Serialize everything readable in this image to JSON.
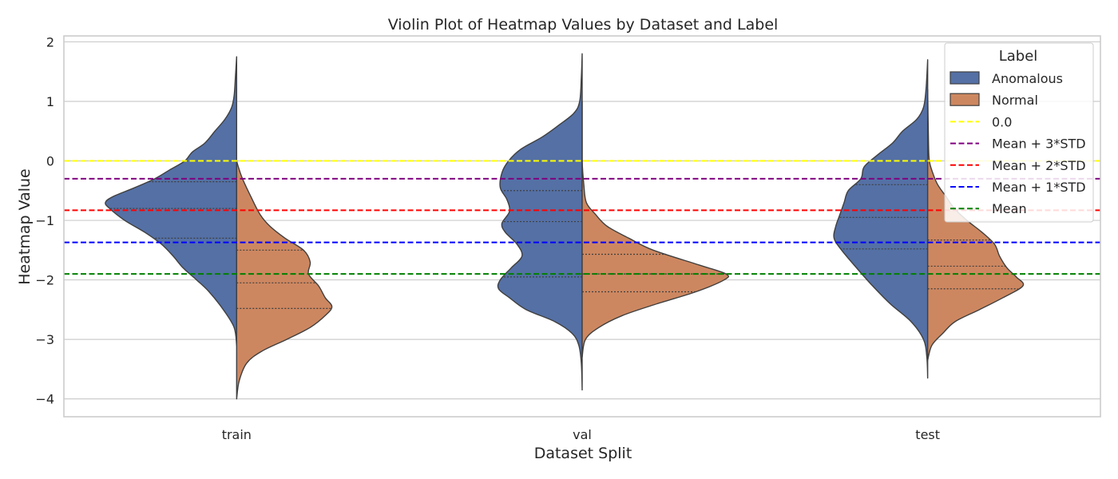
{
  "chart_data": {
    "type": "violin",
    "title": "Violin Plot of Heatmap Values by Dataset and Label",
    "xlabel": "Dataset Split",
    "ylabel": "Heatmap Value",
    "categories": [
      "train",
      "val",
      "test"
    ],
    "ylim": [
      -4.3,
      2.1
    ],
    "yticks": [
      2,
      1,
      0,
      -1,
      -2,
      -3,
      -4
    ],
    "ytick_labels": [
      "2",
      "1",
      "0",
      "−1",
      "−2",
      "−3",
      "−4"
    ],
    "grid": true,
    "legend": {
      "title": "Label",
      "placement": "top-right",
      "entries": [
        "Anomalous",
        "Normal",
        "0.0",
        "Mean + 3*STD",
        "Mean + 2*STD",
        "Mean + 1*STD",
        "Mean"
      ]
    },
    "series": [
      {
        "name": "Anomalous",
        "side": "left",
        "color": "#5470a5",
        "violins": [
          {
            "category": "train",
            "range": [
              -3.1,
              1.75
            ],
            "quartiles": [
              -1.3,
              -0.8,
              -0.35
            ],
            "profile": [
              [
                -3.1,
                0.0
              ],
              [
                -2.8,
                0.03
              ],
              [
                -2.5,
                0.16
              ],
              [
                -2.2,
                0.33
              ],
              [
                -2.0,
                0.48
              ],
              [
                -1.8,
                0.64
              ],
              [
                -1.6,
                0.76
              ],
              [
                -1.4,
                0.9
              ],
              [
                -1.2,
                1.1
              ],
              [
                -1.0,
                1.34
              ],
              [
                -0.8,
                1.52
              ],
              [
                -0.7,
                1.57
              ],
              [
                -0.6,
                1.48
              ],
              [
                -0.45,
                1.22
              ],
              [
                -0.3,
                0.98
              ],
              [
                -0.15,
                0.8
              ],
              [
                0.0,
                0.62
              ],
              [
                0.15,
                0.53
              ],
              [
                0.3,
                0.38
              ],
              [
                0.5,
                0.26
              ],
              [
                0.7,
                0.14
              ],
              [
                0.9,
                0.06
              ],
              [
                1.1,
                0.03
              ],
              [
                1.4,
                0.015
              ],
              [
                1.75,
                0.0
              ]
            ]
          },
          {
            "category": "val",
            "range": [
              -3.85,
              1.8
            ],
            "quartiles": [
              -1.95,
              -1.02,
              -0.5
            ],
            "profile": [
              [
                -3.85,
                0.0
              ],
              [
                -3.4,
                0.01
              ],
              [
                -3.1,
                0.04
              ],
              [
                -2.9,
                0.12
              ],
              [
                -2.7,
                0.33
              ],
              [
                -2.5,
                0.67
              ],
              [
                -2.3,
                0.87
              ],
              [
                -2.15,
                1.0
              ],
              [
                -2.0,
                0.98
              ],
              [
                -1.8,
                0.85
              ],
              [
                -1.6,
                0.72
              ],
              [
                -1.4,
                0.78
              ],
              [
                -1.2,
                0.92
              ],
              [
                -1.05,
                0.96
              ],
              [
                -0.85,
                0.87
              ],
              [
                -0.65,
                0.9
              ],
              [
                -0.45,
                0.98
              ],
              [
                -0.2,
                0.96
              ],
              [
                0.0,
                0.88
              ],
              [
                0.2,
                0.73
              ],
              [
                0.4,
                0.48
              ],
              [
                0.6,
                0.28
              ],
              [
                0.8,
                0.1
              ],
              [
                1.0,
                0.03
              ],
              [
                1.4,
                0.01
              ],
              [
                1.8,
                0.0
              ]
            ]
          },
          {
            "category": "test",
            "range": [
              -3.65,
              1.7
            ],
            "quartiles": [
              -1.48,
              -0.95,
              -0.4
            ],
            "profile": [
              [
                -3.65,
                0.0
              ],
              [
                -3.3,
                0.01
              ],
              [
                -3.0,
                0.05
              ],
              [
                -2.7,
                0.2
              ],
              [
                -2.4,
                0.45
              ],
              [
                -2.1,
                0.66
              ],
              [
                -1.8,
                0.85
              ],
              [
                -1.5,
                1.03
              ],
              [
                -1.3,
                1.12
              ],
              [
                -1.1,
                1.1
              ],
              [
                -0.9,
                1.05
              ],
              [
                -0.7,
                1.0
              ],
              [
                -0.5,
                0.95
              ],
              [
                -0.3,
                0.8
              ],
              [
                -0.1,
                0.76
              ],
              [
                0.1,
                0.6
              ],
              [
                0.3,
                0.42
              ],
              [
                0.5,
                0.3
              ],
              [
                0.7,
                0.13
              ],
              [
                0.9,
                0.05
              ],
              [
                1.2,
                0.02
              ],
              [
                1.7,
                0.0
              ]
            ]
          }
        ]
      },
      {
        "name": "Normal",
        "side": "right",
        "color": "#cd8760",
        "violins": [
          {
            "category": "train",
            "range": [
              -4.0,
              0.0
            ],
            "quartiles": [
              -2.48,
              -2.05,
              -1.5
            ],
            "profile": [
              [
                -4.0,
                0.0
              ],
              [
                -3.7,
                0.03
              ],
              [
                -3.4,
                0.12
              ],
              [
                -3.2,
                0.3
              ],
              [
                -3.0,
                0.6
              ],
              [
                -2.8,
                0.88
              ],
              [
                -2.6,
                1.06
              ],
              [
                -2.45,
                1.14
              ],
              [
                -2.3,
                1.06
              ],
              [
                -2.1,
                0.98
              ],
              [
                -1.9,
                0.86
              ],
              [
                -1.7,
                0.88
              ],
              [
                -1.5,
                0.8
              ],
              [
                -1.3,
                0.58
              ],
              [
                -1.1,
                0.4
              ],
              [
                -0.9,
                0.28
              ],
              [
                -0.6,
                0.17
              ],
              [
                -0.3,
                0.07
              ],
              [
                -0.1,
                0.02
              ],
              [
                0.0,
                0.0
              ]
            ]
          },
          {
            "category": "val",
            "range": [
              -3.3,
              1.0
            ],
            "quartiles": [
              -2.2,
              -1.9,
              -1.57
            ],
            "profile": [
              [
                -3.3,
                0.0
              ],
              [
                -3.0,
                0.04
              ],
              [
                -2.8,
                0.2
              ],
              [
                -2.6,
                0.48
              ],
              [
                -2.4,
                0.9
              ],
              [
                -2.2,
                1.36
              ],
              [
                -2.0,
                1.7
              ],
              [
                -1.9,
                1.72
              ],
              [
                -1.75,
                1.4
              ],
              [
                -1.5,
                0.85
              ],
              [
                -1.3,
                0.56
              ],
              [
                -1.1,
                0.3
              ],
              [
                -0.9,
                0.16
              ],
              [
                -0.7,
                0.05
              ],
              [
                -0.4,
                0.02
              ],
              [
                0.0,
                0.0
              ],
              [
                0.5,
                0.0
              ],
              [
                1.0,
                0.0
              ]
            ]
          },
          {
            "category": "test",
            "range": [
              -3.35,
              1.2
            ],
            "quartiles": [
              -2.15,
              -1.77,
              -1.33
            ],
            "profile": [
              [
                -3.35,
                0.0
              ],
              [
                -3.1,
                0.05
              ],
              [
                -2.9,
                0.18
              ],
              [
                -2.7,
                0.33
              ],
              [
                -2.5,
                0.62
              ],
              [
                -2.3,
                0.9
              ],
              [
                -2.1,
                1.14
              ],
              [
                -1.95,
                1.06
              ],
              [
                -1.8,
                0.95
              ],
              [
                -1.6,
                0.86
              ],
              [
                -1.4,
                0.8
              ],
              [
                -1.2,
                0.65
              ],
              [
                -1.0,
                0.47
              ],
              [
                -0.8,
                0.32
              ],
              [
                -0.6,
                0.22
              ],
              [
                -0.4,
                0.12
              ],
              [
                -0.2,
                0.06
              ],
              [
                0.0,
                0.02
              ],
              [
                0.3,
                0.01
              ],
              [
                1.2,
                0.0
              ]
            ]
          }
        ]
      }
    ],
    "reference_lines": [
      {
        "name": "0.0",
        "value": 0.0,
        "color": "#ffff00"
      },
      {
        "name": "Mean + 3*STD",
        "value": -0.3,
        "color": "#800080"
      },
      {
        "name": "Mean + 2*STD",
        "value": -0.83,
        "color": "#ff0000"
      },
      {
        "name": "Mean + 1*STD",
        "value": -1.37,
        "color": "#0000ff"
      },
      {
        "name": "Mean",
        "value": -1.9,
        "color": "#008000"
      }
    ],
    "colors": {
      "grid": "#cccccc",
      "frame": "#cccccc",
      "violin_edge": "#3f3f3f",
      "text": "#262626"
    }
  }
}
